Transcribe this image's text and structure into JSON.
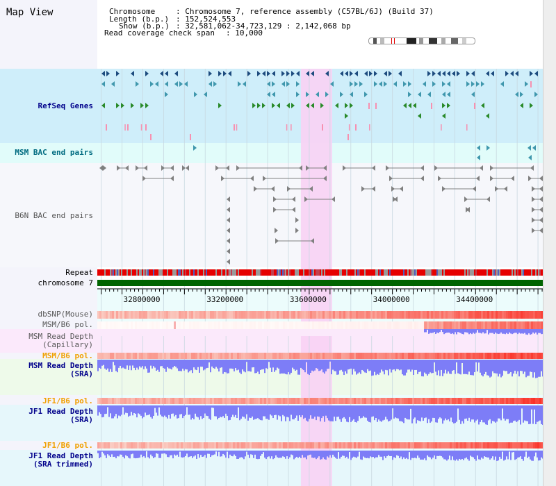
{
  "header": {
    "title": "Map View",
    "info": [
      {
        "key": "Chromosome",
        "value": "Chromosome 7, reference assembly (C57BL/6J) (Build 37)"
      },
      {
        "key": "Length (b.p.)",
        "value": "152,524,553"
      },
      {
        "key": "Show (b.p.)",
        "value": "32,581,062-34,723,129 : 2,142,068 bp"
      }
    ],
    "coverage": {
      "key": "Read coverage check span",
      "value": "10,000"
    }
  },
  "tracks": {
    "refseq": "RefSeq Genes",
    "msm_bac": "MSM BAC end pairs",
    "b6n_bac": "B6N BAC end pairs",
    "repeat": "Repeat",
    "chromosome": "chromosome 7",
    "dbsnp": "dbSNP(Mouse)",
    "msm_b6_pol_1": "MSM/B6 pol.",
    "msm_depth_cap_1": "MSM Read Depth",
    "msm_depth_cap_2": "(Capillary)",
    "msm_b6_pol_2": "MSM/B6 pol.",
    "msm_depth_sra_1": "MSM Read Depth",
    "msm_depth_sra_2": "(SRA)",
    "jf1_pol_1": "JF1/B6 pol.",
    "jf1_depth_sra_1": "JF1 Read Depth",
    "jf1_depth_sra_2": "(SRA)",
    "jf1_pol_2": "JF1/B6 pol.",
    "jf1_depth_trim_1": "JF1 Read Depth",
    "jf1_depth_trim_2": "(SRA trimmed)"
  },
  "axis": {
    "start": 32581062,
    "end": 34723129,
    "major_ticks": [
      32800000,
      33200000,
      33600000,
      34000000,
      34400000
    ],
    "major_labels": [
      "32800000",
      "33200000",
      "33600000",
      "34000000",
      "34400000"
    ],
    "minor_step": 100000,
    "highlight_range": [
      33560000,
      33710000
    ]
  },
  "colors": {
    "refseq_bg": "#cfeefa",
    "msm_bac_bg": "#e1fcfa",
    "b6n_bg": "#f6f7fb",
    "highlight": "#f8d2f4",
    "chromosome": "#006400",
    "repeat_a": "#e60000",
    "repeat_b": "#9a9a9a",
    "gene_dark": "#1d4b7e",
    "gene_teal": "#3f97ad",
    "gene_green": "#2a8a2a",
    "pink_mark": "#f790b0",
    "bac_gray": "#808080",
    "depth": "#7d7df7",
    "label_blue": "#00008b",
    "label_teal": "#006b80",
    "label_orange": "#f0a000",
    "label_gray": "#555555"
  }
}
